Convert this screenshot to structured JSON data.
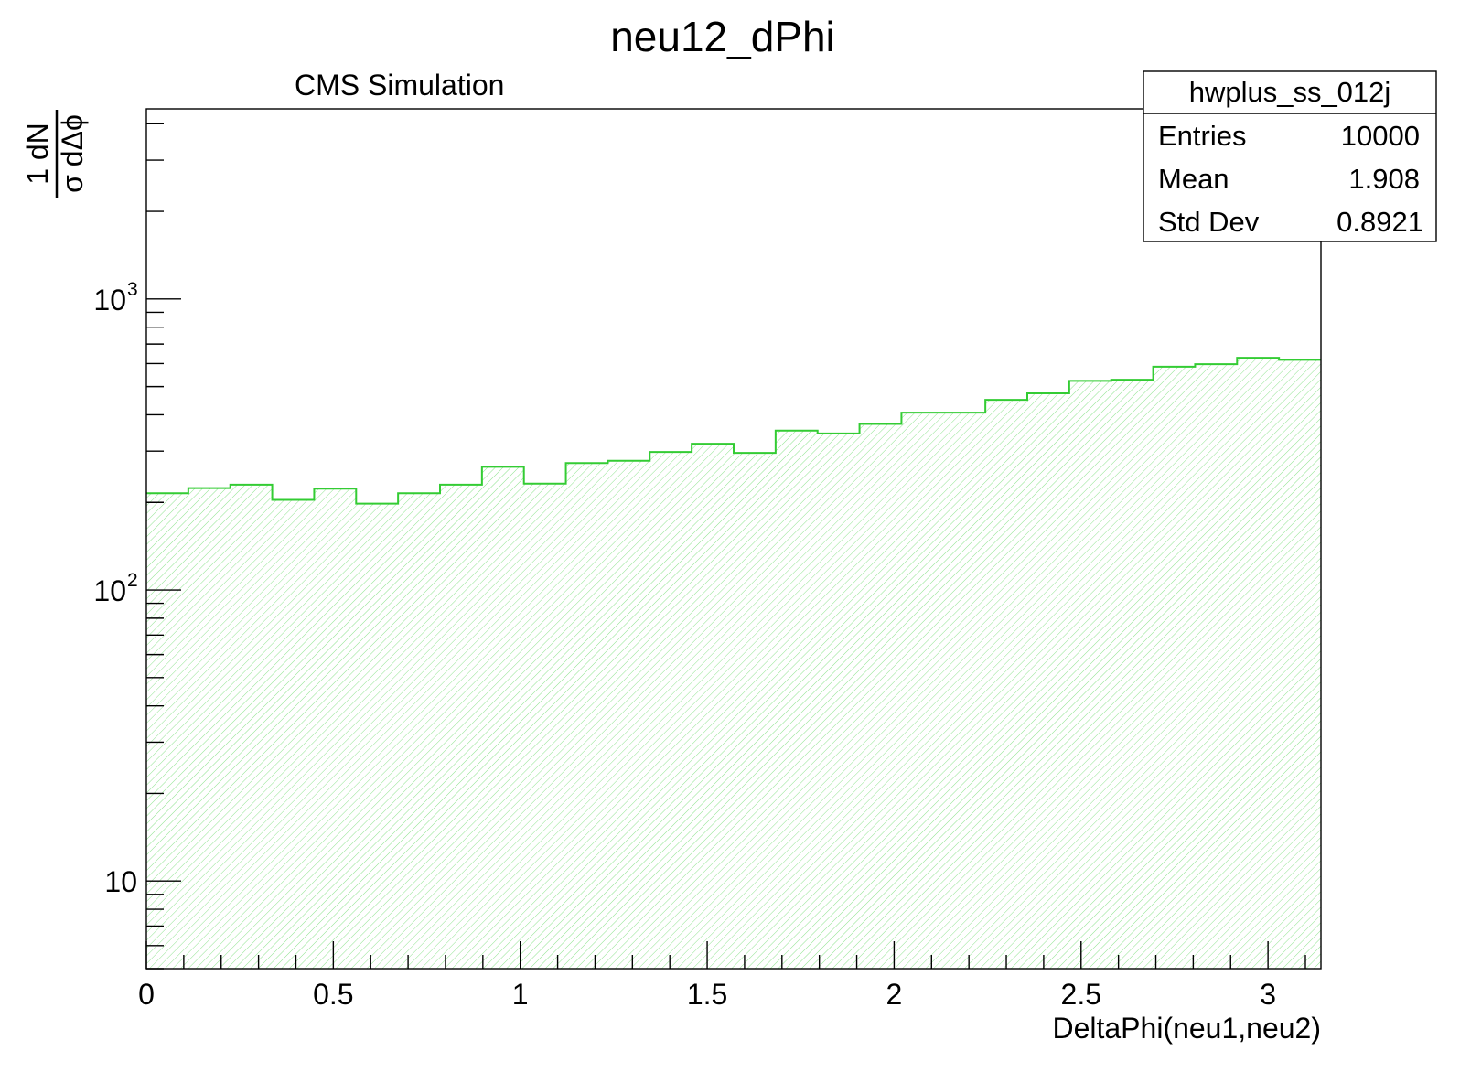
{
  "chart_data": {
    "type": "histogram",
    "title": "neu12_dPhi",
    "subtitle": "CMS Simulation",
    "xlabel": "DeltaPhi(neu1,neu2)",
    "ylabel_numerator": "1 dN",
    "ylabel_denominator": "σ dΔϕ",
    "y_scale": "log",
    "xlim": [
      0,
      3.1416
    ],
    "ylim": [
      5,
      4500
    ],
    "x_ticks": [
      "0",
      "0.5",
      "1",
      "1.5",
      "2",
      "2.5",
      "3"
    ],
    "x_tick_values": [
      0,
      0.5,
      1,
      1.5,
      2,
      2.5,
      3
    ],
    "y_ticks": [
      {
        "base": "10",
        "exp": "",
        "value": 10
      },
      {
        "base": "10",
        "exp": "2",
        "value": 100
      },
      {
        "base": "10",
        "exp": "3",
        "value": 1000
      }
    ],
    "fill_color": "#33cc33",
    "line_color": "#33cc33",
    "fill_style": "hatched",
    "bins": [
      {
        "x0": 0.0,
        "x1": 0.1122,
        "y": 215
      },
      {
        "x0": 0.1122,
        "x1": 0.2244,
        "y": 224
      },
      {
        "x0": 0.2244,
        "x1": 0.3366,
        "y": 230
      },
      {
        "x0": 0.3366,
        "x1": 0.4488,
        "y": 204
      },
      {
        "x0": 0.4488,
        "x1": 0.561,
        "y": 223
      },
      {
        "x0": 0.561,
        "x1": 0.6732,
        "y": 198
      },
      {
        "x0": 0.6732,
        "x1": 0.7854,
        "y": 215
      },
      {
        "x0": 0.7854,
        "x1": 0.8976,
        "y": 230
      },
      {
        "x0": 0.8976,
        "x1": 1.0098,
        "y": 265
      },
      {
        "x0": 1.0098,
        "x1": 1.122,
        "y": 232
      },
      {
        "x0": 1.122,
        "x1": 1.2342,
        "y": 273
      },
      {
        "x0": 1.2342,
        "x1": 1.3464,
        "y": 278
      },
      {
        "x0": 1.3464,
        "x1": 1.4586,
        "y": 298
      },
      {
        "x0": 1.4586,
        "x1": 1.5708,
        "y": 318
      },
      {
        "x0": 1.5708,
        "x1": 1.683,
        "y": 296
      },
      {
        "x0": 1.683,
        "x1": 1.7952,
        "y": 353
      },
      {
        "x0": 1.7952,
        "x1": 1.9074,
        "y": 345
      },
      {
        "x0": 1.9074,
        "x1": 2.0196,
        "y": 372
      },
      {
        "x0": 2.0196,
        "x1": 2.1318,
        "y": 407
      },
      {
        "x0": 2.1318,
        "x1": 2.244,
        "y": 407
      },
      {
        "x0": 2.244,
        "x1": 2.3562,
        "y": 450
      },
      {
        "x0": 2.3562,
        "x1": 2.4684,
        "y": 474
      },
      {
        "x0": 2.4684,
        "x1": 2.5806,
        "y": 523
      },
      {
        "x0": 2.5806,
        "x1": 2.6928,
        "y": 528
      },
      {
        "x0": 2.6928,
        "x1": 2.805,
        "y": 585
      },
      {
        "x0": 2.805,
        "x1": 2.9172,
        "y": 597
      },
      {
        "x0": 2.9172,
        "x1": 3.0294,
        "y": 628
      },
      {
        "x0": 3.0294,
        "x1": 3.1416,
        "y": 618
      }
    ],
    "stats_box": {
      "name": "hwplus_ss_012j",
      "rows": [
        {
          "label": "Entries",
          "value": "10000"
        },
        {
          "label": "Mean",
          "value": "1.908"
        },
        {
          "label": "Std Dev",
          "value": "0.8921"
        }
      ]
    }
  }
}
